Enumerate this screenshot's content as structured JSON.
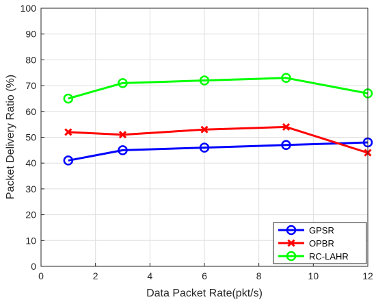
{
  "chart_data": {
    "type": "line",
    "title": "",
    "xlabel": "Data Packet Rate(pkt/s)",
    "ylabel": "Packet Delivery Ratio (%)",
    "xlim": [
      0,
      12
    ],
    "ylim": [
      0,
      100
    ],
    "xticks": [
      0,
      2,
      4,
      6,
      8,
      10,
      12
    ],
    "yticks": [
      0,
      10,
      20,
      30,
      40,
      50,
      60,
      70,
      80,
      90,
      100
    ],
    "grid": true,
    "legend_position": "bottom-right",
    "x": [
      1,
      3,
      6,
      9,
      12
    ],
    "series": [
      {
        "name": "GPSR",
        "values": [
          41,
          45,
          46,
          47,
          48
        ],
        "color": "#0000ff",
        "marker": "circle"
      },
      {
        "name": "OPBR",
        "values": [
          52,
          51,
          53,
          54,
          44
        ],
        "color": "#ff0000",
        "marker": "x"
      },
      {
        "name": "RC-LAHR",
        "values": [
          65,
          71,
          72,
          73,
          67
        ],
        "color": "#00ff00",
        "marker": "circle"
      }
    ]
  }
}
